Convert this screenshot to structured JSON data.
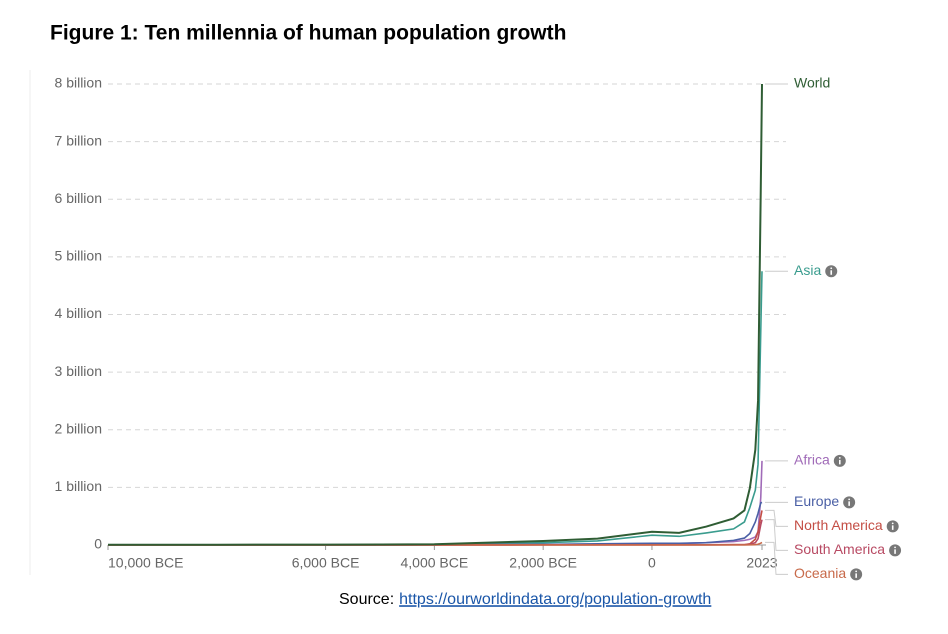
{
  "chart_data": {
    "type": "line",
    "title": "Figure 1: Ten millennia of human population growth",
    "x": [
      -10000,
      -8000,
      -6000,
      -4000,
      -2000,
      -1000,
      0,
      500,
      1000,
      1500,
      1700,
      1800,
      1900,
      1950,
      2000,
      2023
    ],
    "xlim": [
      -10000,
      2023
    ],
    "xticks": [
      {
        "value": -10000,
        "label": "10,000 BCE"
      },
      {
        "value": -6000,
        "label": "6,000 BCE"
      },
      {
        "value": -4000,
        "label": "4,000 BCE"
      },
      {
        "value": -2000,
        "label": "2,000 BCE"
      },
      0,
      2023
    ],
    "ylim": [
      0,
      8
    ],
    "yticks": [
      0,
      {
        "value": 1,
        "label": "1 billion"
      },
      {
        "value": 2,
        "label": "2 billion"
      },
      {
        "value": 3,
        "label": "3 billion"
      },
      {
        "value": 4,
        "label": "4 billion"
      },
      {
        "value": 5,
        "label": "5 billion"
      },
      {
        "value": 6,
        "label": "6 billion"
      },
      {
        "value": 7,
        "label": "7 billion"
      },
      {
        "value": 8,
        "label": "8 billion"
      }
    ],
    "grid": true,
    "series": [
      {
        "name": "World",
        "color": "#2f5d34",
        "values": [
          0.004,
          0.005,
          0.007,
          0.012,
          0.07,
          0.11,
          0.23,
          0.21,
          0.32,
          0.46,
          0.6,
          0.99,
          1.65,
          2.5,
          6.15,
          8.0
        ]
      },
      {
        "name": "Asia",
        "color": "#3a9c8e",
        "values": [
          0.002,
          0.003,
          0.004,
          0.007,
          0.04,
          0.07,
          0.17,
          0.15,
          0.21,
          0.28,
          0.4,
          0.65,
          0.95,
          1.4,
          3.7,
          4.75
        ]
      },
      {
        "name": "Africa",
        "color": "#a06bb8",
        "values": [
          0.001,
          0.001,
          0.001,
          0.002,
          0.01,
          0.015,
          0.02,
          0.025,
          0.04,
          0.06,
          0.08,
          0.1,
          0.14,
          0.23,
          0.82,
          1.46
        ]
      },
      {
        "name": "Europe",
        "color": "#4a5fa5",
        "values": [
          0.001,
          0.001,
          0.001,
          0.002,
          0.01,
          0.02,
          0.03,
          0.03,
          0.04,
          0.08,
          0.12,
          0.2,
          0.4,
          0.55,
          0.73,
          0.74
        ]
      },
      {
        "name": "North America",
        "color": "#c44e45",
        "values": [
          0.0005,
          0.0005,
          0.0005,
          0.001,
          0.002,
          0.002,
          0.003,
          0.003,
          0.004,
          0.005,
          0.005,
          0.02,
          0.1,
          0.23,
          0.49,
          0.6
        ]
      },
      {
        "name": "South America",
        "color": "#b84a63",
        "values": [
          0.0005,
          0.0005,
          0.0005,
          0.001,
          0.002,
          0.002,
          0.003,
          0.003,
          0.004,
          0.005,
          0.006,
          0.01,
          0.04,
          0.11,
          0.35,
          0.44
        ]
      },
      {
        "name": "Oceania",
        "color": "#c86a4a",
        "values": [
          0.0002,
          0.0002,
          0.0002,
          0.0003,
          0.0004,
          0.0005,
          0.0005,
          0.0005,
          0.0006,
          0.0007,
          0.0008,
          0.002,
          0.006,
          0.013,
          0.031,
          0.045
        ]
      }
    ],
    "source": {
      "label": "Source:",
      "url": "https://ourworldindata.org/population-growth"
    }
  }
}
